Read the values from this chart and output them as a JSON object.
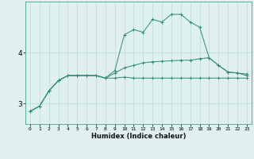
{
  "title": "",
  "xlabel": "Humidex (Indice chaleur)",
  "x_values": [
    0,
    1,
    2,
    3,
    4,
    5,
    6,
    7,
    8,
    9,
    10,
    11,
    12,
    13,
    14,
    15,
    16,
    17,
    18,
    19,
    20,
    21,
    22,
    23
  ],
  "line1": [
    2.85,
    2.95,
    3.25,
    3.45,
    3.55,
    3.55,
    3.55,
    3.55,
    3.5,
    3.5,
    3.52,
    3.5,
    3.5,
    3.5,
    3.5,
    3.5,
    3.5,
    3.5,
    3.5,
    3.5,
    3.5,
    3.5,
    3.5,
    3.5
  ],
  "line2": [
    2.85,
    2.95,
    3.25,
    3.45,
    3.55,
    3.55,
    3.55,
    3.55,
    3.5,
    3.6,
    3.7,
    3.75,
    3.8,
    3.82,
    3.83,
    3.84,
    3.85,
    3.85,
    3.88,
    3.9,
    3.75,
    3.62,
    3.6,
    3.58
  ],
  "line3": [
    2.85,
    2.95,
    3.25,
    3.45,
    3.55,
    3.55,
    3.55,
    3.55,
    3.5,
    3.65,
    4.35,
    4.45,
    4.4,
    4.65,
    4.6,
    4.75,
    4.75,
    4.6,
    4.5,
    3.9,
    3.75,
    3.62,
    3.6,
    3.55
  ],
  "line_color": "#2e8b7a",
  "bg_color": "#dff0ee",
  "grid_color": "#b8ddd8",
  "yticks": [
    3,
    4
  ],
  "ylim": [
    2.6,
    5.0
  ],
  "xlim": [
    -0.5,
    23.5
  ],
  "xtick_fontsize": 4.5,
  "ytick_fontsize": 6.5,
  "xlabel_fontsize": 6.0
}
